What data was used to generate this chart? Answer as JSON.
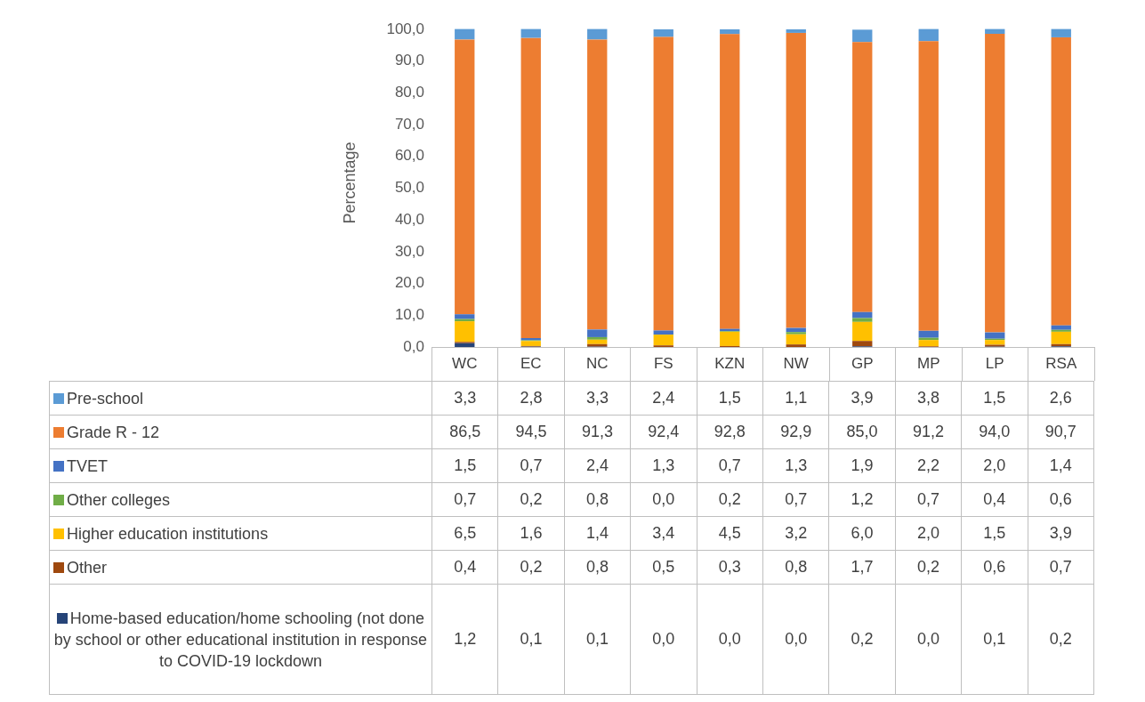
{
  "chart_data": {
    "type": "bar",
    "stacked": true,
    "ylabel": "Percentage",
    "legend": "bottom",
    "categories": [
      "WC",
      "EC",
      "NC",
      "FS",
      "KZN",
      "NW",
      "GP",
      "MP",
      "LP",
      "RSA"
    ],
    "ylim": [
      0,
      100
    ],
    "yticks": [
      {
        "value": 0,
        "label": "0,0"
      },
      {
        "value": 10,
        "label": "10,0"
      },
      {
        "value": 20,
        "label": "20,0"
      },
      {
        "value": 30,
        "label": "30,0"
      },
      {
        "value": 40,
        "label": "40,0"
      },
      {
        "value": 50,
        "label": "50,0"
      },
      {
        "value": 60,
        "label": "60,0"
      },
      {
        "value": 70,
        "label": "70,0"
      },
      {
        "value": 80,
        "label": "80,0"
      },
      {
        "value": 90,
        "label": "90,0"
      },
      {
        "value": 100,
        "label": "100,0"
      }
    ],
    "series": [
      {
        "name": "Home-based education/home schooling (not done by school or other educational institution in response to COVID-19 lockdown",
        "color": "#264478",
        "values": [
          1.2,
          0.1,
          0.1,
          0.0,
          0.0,
          0.0,
          0.2,
          0.0,
          0.1,
          0.2
        ],
        "value_labels": [
          "1,2",
          "0,1",
          "0,1",
          "0,0",
          "0,0",
          "0,0",
          "0,2",
          "0,0",
          "0,1",
          "0,2"
        ]
      },
      {
        "name": "Other",
        "color": "#9e480e",
        "values": [
          0.4,
          0.2,
          0.8,
          0.5,
          0.3,
          0.8,
          1.7,
          0.2,
          0.6,
          0.7
        ],
        "value_labels": [
          "0,4",
          "0,2",
          "0,8",
          "0,5",
          "0,3",
          "0,8",
          "1,7",
          "0,2",
          "0,6",
          "0,7"
        ]
      },
      {
        "name": "Higher education institutions",
        "color": "#ffc000",
        "values": [
          6.5,
          1.6,
          1.4,
          3.4,
          4.5,
          3.2,
          6.0,
          2.0,
          1.5,
          3.9
        ],
        "value_labels": [
          "6,5",
          "1,6",
          "1,4",
          "3,4",
          "4,5",
          "3,2",
          "6,0",
          "2,0",
          "1,5",
          "3,9"
        ]
      },
      {
        "name": "Other colleges",
        "color": "#70ad47",
        "values": [
          0.7,
          0.2,
          0.8,
          0.0,
          0.2,
          0.7,
          1.2,
          0.7,
          0.4,
          0.6
        ],
        "value_labels": [
          "0,7",
          "0,2",
          "0,8",
          "0,0",
          "0,2",
          "0,7",
          "1,2",
          "0,7",
          "0,4",
          "0,6"
        ]
      },
      {
        "name": "TVET",
        "color": "#4472c4",
        "values": [
          1.5,
          0.7,
          2.4,
          1.3,
          0.7,
          1.3,
          1.9,
          2.2,
          2.0,
          1.4
        ],
        "value_labels": [
          "1,5",
          "0,7",
          "2,4",
          "1,3",
          "0,7",
          "1,3",
          "1,9",
          "2,2",
          "2,0",
          "1,4"
        ]
      },
      {
        "name": "Grade R - 12",
        "color": "#ed7d31",
        "values": [
          86.5,
          94.5,
          91.3,
          92.4,
          92.8,
          92.9,
          85.0,
          91.2,
          94.0,
          90.7
        ],
        "value_labels": [
          "86,5",
          "94,5",
          "91,3",
          "92,4",
          "92,8",
          "92,9",
          "85,0",
          "91,2",
          "94,0",
          "90,7"
        ]
      },
      {
        "name": "Pre-school",
        "color": "#5b9bd5",
        "values": [
          3.3,
          2.8,
          3.3,
          2.4,
          1.5,
          1.1,
          3.9,
          3.8,
          1.5,
          2.6
        ],
        "value_labels": [
          "3,3",
          "2,8",
          "3,3",
          "2,4",
          "1,5",
          "1,1",
          "3,9",
          "3,8",
          "1,5",
          "2,6"
        ]
      }
    ]
  }
}
